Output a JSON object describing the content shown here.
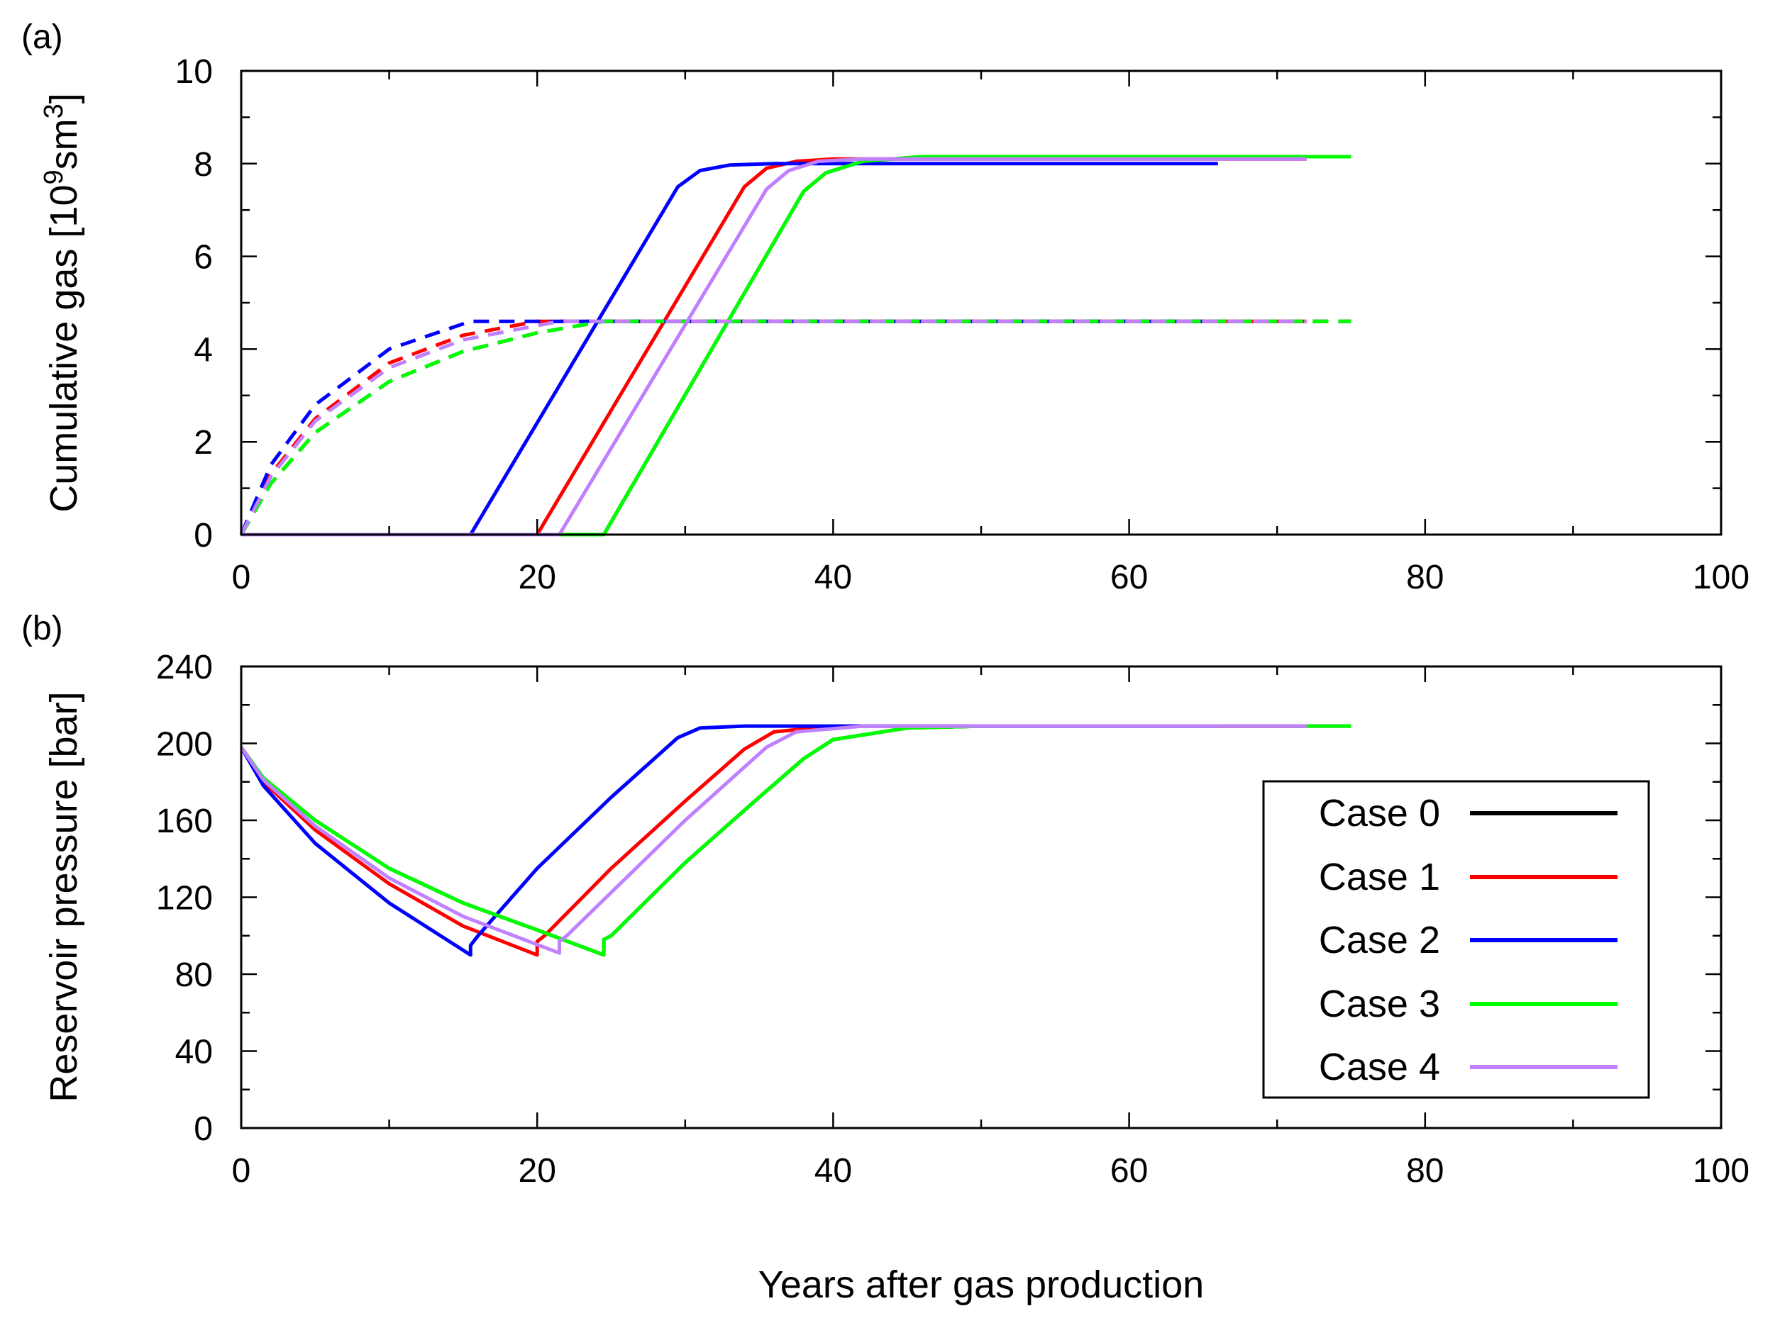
{
  "colors": {
    "case0": "#000000",
    "case1": "#ff0000",
    "case2": "#0000ff",
    "case3": "#00ff00",
    "case4": "#c080ff"
  },
  "chart_data": [
    {
      "id": "a",
      "panel_label": "(a)",
      "type": "line",
      "ylabel": {
        "prefix": "Cumulative gas [10",
        "sup1": "9",
        "mid": "sm",
        "sup2": "3",
        "suffix": "]"
      },
      "xlim": [
        0,
        100
      ],
      "ylim": [
        0,
        10
      ],
      "x_ticks": [
        0,
        20,
        40,
        60,
        80,
        100
      ],
      "x_tick_labels": [
        "0",
        "20",
        "40",
        "60",
        "80",
        "100"
      ],
      "x_minor_step": 10,
      "y_ticks": [
        0,
        2,
        4,
        6,
        8,
        10
      ],
      "y_tick_labels": [
        "0",
        "2",
        "4",
        "6",
        "8",
        "10"
      ],
      "y_minor_step": 1,
      "series": [
        {
          "name": "Case 0 (solid)",
          "color_key": "case0",
          "style": "solid",
          "x": [
            0,
            24.5,
            38,
            39.5,
            42,
            46,
            75
          ],
          "y": [
            0,
            0,
            7.4,
            7.8,
            8.05,
            8.15,
            8.15
          ]
        },
        {
          "name": "Case 0 (dashed)",
          "color_key": "case0",
          "style": "dashed",
          "x": [
            0,
            2,
            5,
            10,
            15,
            20,
            24.5,
            75
          ],
          "y": [
            0,
            1.1,
            2.2,
            3.3,
            3.95,
            4.35,
            4.6,
            4.6
          ]
        },
        {
          "name": "Case 1 (solid)",
          "color_key": "case1",
          "style": "solid",
          "x": [
            0,
            20,
            34,
            35.5,
            37.5,
            40,
            72
          ],
          "y": [
            0,
            0,
            7.5,
            7.9,
            8.05,
            8.1,
            8.1
          ]
        },
        {
          "name": "Case 1 (dashed)",
          "color_key": "case1",
          "style": "dashed",
          "x": [
            0,
            2,
            5,
            10,
            15,
            20,
            72
          ],
          "y": [
            0,
            1.3,
            2.5,
            3.7,
            4.3,
            4.6,
            4.6
          ]
        },
        {
          "name": "Case 2 (solid)",
          "color_key": "case2",
          "style": "solid",
          "x": [
            0,
            15.5,
            29.5,
            31,
            33,
            36,
            66
          ],
          "y": [
            0,
            0,
            7.5,
            7.85,
            7.97,
            8.0,
            8.0
          ]
        },
        {
          "name": "Case 2 (dashed)",
          "color_key": "case2",
          "style": "dashed",
          "x": [
            0,
            2,
            5,
            10,
            15.5,
            66
          ],
          "y": [
            0,
            1.5,
            2.8,
            4.0,
            4.6,
            4.6
          ]
        },
        {
          "name": "Case 3 (solid)",
          "color_key": "case3",
          "style": "solid",
          "x": [
            0,
            24.5,
            38,
            39.5,
            42,
            46,
            75
          ],
          "y": [
            0,
            0,
            7.4,
            7.8,
            8.05,
            8.15,
            8.15
          ]
        },
        {
          "name": "Case 3 (dashed)",
          "color_key": "case3",
          "style": "dashed",
          "x": [
            0,
            2,
            5,
            10,
            15,
            20,
            24.5,
            75
          ],
          "y": [
            0,
            1.1,
            2.2,
            3.3,
            3.95,
            4.35,
            4.6,
            4.6
          ]
        },
        {
          "name": "Case 4 (solid)",
          "color_key": "case4",
          "style": "solid",
          "x": [
            0,
            21.5,
            35.5,
            37,
            39,
            42,
            72
          ],
          "y": [
            0,
            0,
            7.45,
            7.85,
            8.05,
            8.1,
            8.1
          ]
        },
        {
          "name": "Case 4 (dashed)",
          "color_key": "case4",
          "style": "dashed",
          "x": [
            0,
            2,
            5,
            10,
            15,
            21.5,
            72
          ],
          "y": [
            0,
            1.25,
            2.45,
            3.6,
            4.2,
            4.6,
            4.6
          ]
        }
      ]
    },
    {
      "id": "b",
      "panel_label": "(b)",
      "type": "line",
      "ylabel": "Reservoir pressure [bar]",
      "xlabel": "Years after gas production",
      "xlim": [
        0,
        100
      ],
      "ylim": [
        0,
        240
      ],
      "x_ticks": [
        0,
        20,
        40,
        60,
        80,
        100
      ],
      "x_tick_labels": [
        "0",
        "20",
        "40",
        "60",
        "80",
        "100"
      ],
      "x_minor_step": 10,
      "y_ticks": [
        0,
        40,
        80,
        120,
        160,
        200,
        240
      ],
      "y_tick_labels": [
        "0",
        "40",
        "80",
        "120",
        "160",
        "200",
        "240"
      ],
      "y_minor_step": 20,
      "legend": {
        "position": "right-middle",
        "entries": [
          {
            "label": "Case 0",
            "color_key": "case0"
          },
          {
            "label": "Case 1",
            "color_key": "case1"
          },
          {
            "label": "Case 2",
            "color_key": "case2"
          },
          {
            "label": "Case 3",
            "color_key": "case3"
          },
          {
            "label": "Case 4",
            "color_key": "case4"
          }
        ]
      },
      "series": [
        {
          "name": "Case 0",
          "color_key": "case0",
          "style": "solid",
          "x": [
            0,
            1.5,
            5,
            10,
            15,
            20,
            24.5,
            24.5,
            25,
            30,
            35,
            38,
            40,
            45,
            50,
            75
          ],
          "y": [
            198,
            182,
            160,
            135,
            117,
            103,
            90,
            98,
            100,
            138,
            172,
            192,
            202,
            208,
            209,
            209
          ]
        },
        {
          "name": "Case 1",
          "color_key": "case1",
          "style": "solid",
          "x": [
            0,
            1.5,
            5,
            10,
            15,
            20,
            20,
            20.5,
            25,
            30,
            34,
            36,
            40,
            72
          ],
          "y": [
            198,
            180,
            155,
            127,
            105,
            90,
            97,
            100,
            135,
            170,
            197,
            206,
            209,
            209
          ]
        },
        {
          "name": "Case 2",
          "color_key": "case2",
          "style": "solid",
          "x": [
            0,
            1.5,
            5,
            10,
            15.5,
            15.5,
            16,
            20,
            25,
            29.5,
            31,
            34,
            40,
            66
          ],
          "y": [
            198,
            178,
            148,
            117,
            90,
            95,
            100,
            135,
            172,
            203,
            208,
            209,
            209,
            209
          ]
        },
        {
          "name": "Case 3",
          "color_key": "case3",
          "style": "solid",
          "x": [
            0,
            1.5,
            5,
            10,
            15,
            20,
            24.5,
            24.5,
            25,
            30,
            35,
            38,
            40,
            45,
            50,
            75
          ],
          "y": [
            198,
            182,
            160,
            135,
            117,
            103,
            90,
            98,
            100,
            138,
            172,
            192,
            202,
            208,
            209,
            209
          ]
        },
        {
          "name": "Case 4",
          "color_key": "case4",
          "style": "solid",
          "x": [
            0,
            1.5,
            5,
            10,
            15,
            21.5,
            21.5,
            22,
            26,
            30,
            35.5,
            37.5,
            42,
            72
          ],
          "y": [
            198,
            181,
            157,
            130,
            110,
            91,
            97,
            100,
            130,
            160,
            198,
            206,
            209,
            209
          ]
        }
      ]
    }
  ]
}
